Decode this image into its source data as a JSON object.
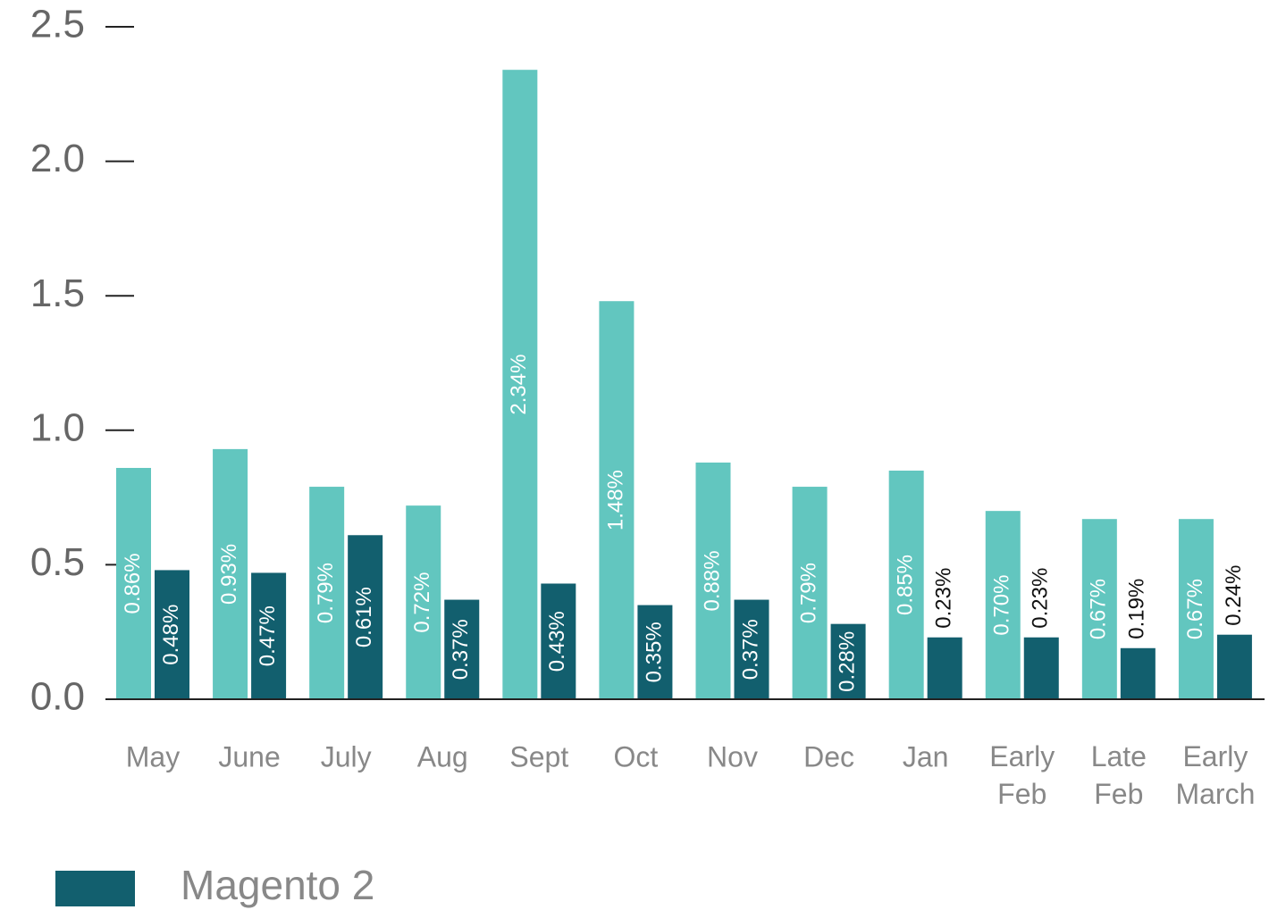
{
  "chart_data": {
    "type": "bar",
    "categories": [
      "May",
      "June",
      "July",
      "Aug",
      "Sept",
      "Oct",
      "Nov",
      "Dec",
      "Jan",
      "Early Feb",
      "Late Feb",
      "Early March"
    ],
    "series": [
      {
        "color": "#62c6bf",
        "values": [
          0.86,
          0.93,
          0.79,
          0.72,
          2.34,
          1.48,
          0.88,
          0.79,
          0.85,
          0.7,
          0.67,
          0.67
        ],
        "value_labels": [
          "0.86%",
          "0.93%",
          "0.79%",
          "0.72%",
          "2.34%",
          "1.48%",
          "0.88%",
          "0.79%",
          "0.85%",
          "0.70%",
          "0.67%",
          "0.67%"
        ]
      },
      {
        "name": "Magento 2",
        "color": "#125f6e",
        "values": [
          0.48,
          0.47,
          0.61,
          0.37,
          0.43,
          0.35,
          0.37,
          0.28,
          0.23,
          0.23,
          0.19,
          0.24
        ],
        "value_labels": [
          "0.48%",
          "0.47%",
          "0.61%",
          "0.37%",
          "0.43%",
          "0.35%",
          "0.37%",
          "0.28%",
          "0.23%",
          "0.23%",
          "0.19%",
          "0.24%"
        ]
      }
    ],
    "ylim": [
      0,
      2.5
    ],
    "yticks": [
      {
        "value": 0,
        "label": "0.0"
      },
      0.5,
      {
        "value": 1,
        "label": "1.0"
      },
      1.5,
      {
        "value": 2,
        "label": "2.0"
      },
      2.5
    ]
  }
}
